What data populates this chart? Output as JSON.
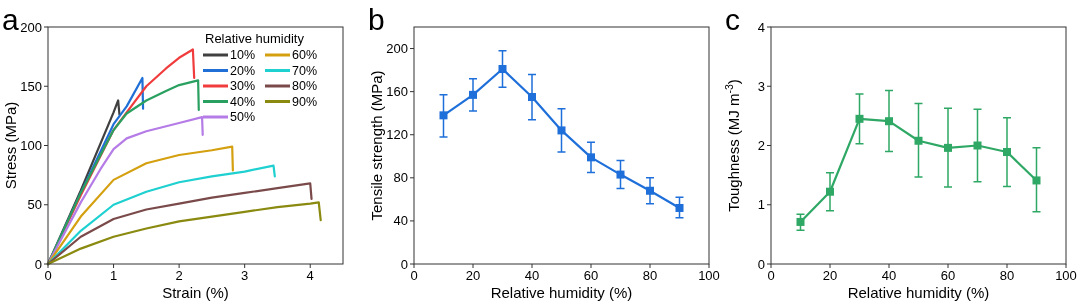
{
  "chart_data": [
    {
      "type": "line",
      "title": "a",
      "xlabel": "Strain (%)",
      "ylabel": "Stress (MPa)",
      "xlim": [
        0,
        4.5
      ],
      "xticks": [
        0,
        1,
        2,
        3,
        4
      ],
      "ylim": [
        0,
        200
      ],
      "yticks": [
        0,
        50,
        100,
        150,
        200
      ],
      "legend": "top right",
      "legend_title": "Relative humidity",
      "series": [
        {
          "name": "10%",
          "color": "#404040",
          "x": [
            0,
            0.5,
            1,
            1.07,
            1.09
          ],
          "values": [
            0,
            62,
            128,
            138,
            126
          ]
        },
        {
          "name": "20%",
          "color": "#1f6fd6",
          "x": [
            0,
            0.5,
            1,
            1.2,
            1.44,
            1.45
          ],
          "values": [
            0,
            60,
            118,
            133,
            157,
            131
          ]
        },
        {
          "name": "30%",
          "color": "#f03c3c",
          "x": [
            0,
            0.5,
            1,
            1.2,
            1.5,
            1.8,
            2,
            2.21,
            2.23
          ],
          "values": [
            0,
            58,
            113,
            128,
            150,
            165,
            174,
            181,
            157
          ]
        },
        {
          "name": "40%",
          "color": "#2aa060",
          "x": [
            0,
            0.5,
            1,
            1.2,
            1.5,
            1.8,
            2,
            2.29,
            2.3
          ],
          "values": [
            0,
            60,
            113,
            127,
            138,
            146,
            151,
            155,
            130
          ]
        },
        {
          "name": "50%",
          "color": "#b57be6",
          "x": [
            0,
            0.5,
            0.8,
            1,
            1.2,
            1.5,
            2,
            2.35,
            2.36
          ],
          "values": [
            0,
            52,
            80,
            97,
            106,
            112,
            119,
            124,
            109
          ]
        },
        {
          "name": "60%",
          "color": "#d4a010",
          "x": [
            0,
            0.5,
            1,
            1.5,
            2,
            2.5,
            2.81,
            2.82
          ],
          "values": [
            0,
            40,
            71,
            85,
            92,
            96,
            99,
            79
          ]
        },
        {
          "name": "70%",
          "color": "#1fd0d0",
          "x": [
            0,
            0.5,
            1,
            1.5,
            2,
            2.5,
            3,
            3.44,
            3.46
          ],
          "values": [
            0,
            28,
            50,
            61,
            69,
            74,
            78,
            83,
            74
          ]
        },
        {
          "name": "80%",
          "color": "#7a4a4a",
          "x": [
            0,
            0.5,
            1,
            1.5,
            2,
            2.5,
            3,
            3.5,
            4,
            4.02
          ],
          "values": [
            0,
            23,
            38,
            46,
            51,
            56,
            60,
            64,
            68,
            55
          ]
        },
        {
          "name": "90%",
          "color": "#8a8a10",
          "x": [
            0,
            0.5,
            1,
            1.5,
            2,
            2.5,
            3,
            3.5,
            4,
            4.13,
            4.16
          ],
          "values": [
            0,
            13,
            23,
            30,
            36,
            40,
            44,
            48,
            51,
            52,
            37
          ]
        }
      ]
    },
    {
      "type": "line",
      "title": "b",
      "xlabel": "Relative humidity (%)",
      "ylabel": "Tensile strength (MPa)",
      "xlim": [
        0,
        100
      ],
      "xticks": [
        0,
        20,
        40,
        60,
        80,
        100
      ],
      "ylim": [
        0,
        220
      ],
      "yticks": [
        0,
        40,
        80,
        120,
        160,
        200
      ],
      "marker": "square",
      "series": [
        {
          "color": "#1e6fd9",
          "x": [
            10,
            20,
            30,
            40,
            50,
            60,
            70,
            80,
            90
          ],
          "values": [
            138,
            157,
            181,
            155,
            124,
            99,
            83,
            68,
            52
          ],
          "errors": [
            [
              118,
              157
            ],
            [
              142,
              172
            ],
            [
              164,
              198
            ],
            [
              134,
              176
            ],
            [
              104,
              144
            ],
            [
              85,
              113
            ],
            [
              70,
              96
            ],
            [
              56,
              80
            ],
            [
              43,
              62
            ]
          ]
        }
      ]
    },
    {
      "type": "line",
      "title": "c",
      "xlabel": "Relative humidity (%)",
      "ylabel": "Toughness (MJ m$^{-3}$)",
      "xlim": [
        0,
        100
      ],
      "xticks": [
        0,
        20,
        40,
        60,
        80,
        100
      ],
      "ylim": [
        0,
        4
      ],
      "yticks": [
        0,
        1,
        2,
        3,
        4
      ],
      "marker": "square",
      "series": [
        {
          "color": "#2fa865",
          "x": [
            10,
            20,
            30,
            40,
            50,
            60,
            70,
            80,
            90
          ],
          "values": [
            0.71,
            1.22,
            2.45,
            2.41,
            2.08,
            1.96,
            2.0,
            1.89,
            1.41
          ],
          "errors": [
            [
              0.57,
              0.84
            ],
            [
              0.9,
              1.54
            ],
            [
              2.03,
              2.87
            ],
            [
              1.9,
              2.93
            ],
            [
              1.47,
              2.71
            ],
            [
              1.3,
              2.63
            ],
            [
              1.39,
              2.61
            ],
            [
              1.31,
              2.47
            ],
            [
              0.88,
              1.96
            ]
          ]
        }
      ]
    }
  ]
}
